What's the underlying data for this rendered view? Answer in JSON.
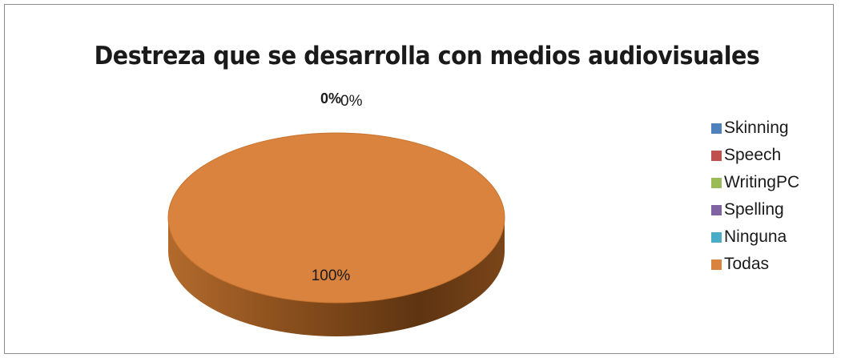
{
  "chart_data": {
    "type": "pie",
    "style": "3d",
    "title": "Destreza que se desarrolla con medios audiovisuales",
    "legend_position": "right",
    "slices": [
      {
        "name": "Skinning",
        "value": 0,
        "label": "0%",
        "color": "#4f81bd"
      },
      {
        "name": "Speech",
        "value": 0,
        "label": "0%",
        "color": "#c0504d"
      },
      {
        "name": "WritingPC",
        "value": 0,
        "label": "0%",
        "color": "#9bbb59"
      },
      {
        "name": "Spelling",
        "value": 0,
        "label": "0%",
        "color": "#8064a2"
      },
      {
        "name": "Ninguna",
        "value": 0,
        "label": "0%",
        "color": "#4bacc6"
      },
      {
        "name": "Todas",
        "value": 100,
        "label": "100%",
        "color": "#d9833e"
      }
    ],
    "top_labels": {
      "bold": "0%",
      "regular": "0%"
    }
  }
}
